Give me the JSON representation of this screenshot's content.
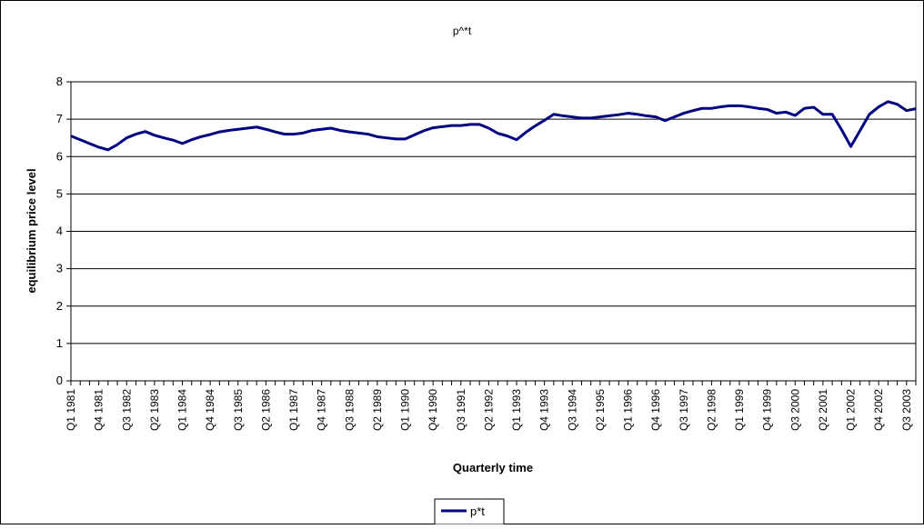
{
  "chart_data": {
    "type": "line",
    "title": "p^*t",
    "xlabel": "Quarterly time",
    "ylabel": "equilibrium price level",
    "ylim": [
      0,
      8
    ],
    "yticks": [
      0,
      1,
      2,
      3,
      4,
      5,
      6,
      7,
      8
    ],
    "grid": "horizontal",
    "legend": {
      "position": "bottom-center",
      "entries": [
        "p*t"
      ]
    },
    "x_tick_labels": [
      "Q1 1981",
      "Q4 1981",
      "Q3 1982",
      "Q2 1983",
      "Q1 1984",
      "Q4 1984",
      "Q3 1985",
      "Q2 1986",
      "Q1 1987",
      "Q4 1987",
      "Q3 1988",
      "Q2 1989",
      "Q1 1990",
      "Q4 1990",
      "Q3 1991",
      "Q2 1992",
      "Q1 1993",
      "Q4 1993",
      "Q3 1994",
      "Q2 1995",
      "Q1 1996",
      "Q4 1996",
      "Q3 1997",
      "Q2 1998",
      "Q1 1999",
      "Q4 1999",
      "Q3 2000",
      "Q2 2001",
      "Q1 2002",
      "Q4 2002",
      "Q3 2003"
    ],
    "x_tick_label_every": 3,
    "x": [
      "Q1 1981",
      "Q2 1981",
      "Q3 1981",
      "Q4 1981",
      "Q1 1982",
      "Q2 1982",
      "Q3 1982",
      "Q4 1982",
      "Q1 1983",
      "Q2 1983",
      "Q3 1983",
      "Q4 1983",
      "Q1 1984",
      "Q2 1984",
      "Q3 1984",
      "Q4 1984",
      "Q1 1985",
      "Q2 1985",
      "Q3 1985",
      "Q4 1985",
      "Q1 1986",
      "Q2 1986",
      "Q3 1986",
      "Q4 1986",
      "Q1 1987",
      "Q2 1987",
      "Q3 1987",
      "Q4 1987",
      "Q1 1988",
      "Q2 1988",
      "Q3 1988",
      "Q4 1988",
      "Q1 1989",
      "Q2 1989",
      "Q3 1989",
      "Q4 1989",
      "Q1 1990",
      "Q2 1990",
      "Q3 1990",
      "Q4 1990",
      "Q1 1991",
      "Q2 1991",
      "Q3 1991",
      "Q4 1991",
      "Q1 1992",
      "Q2 1992",
      "Q3 1992",
      "Q4 1992",
      "Q1 1993",
      "Q2 1993",
      "Q3 1993",
      "Q4 1993",
      "Q1 1994",
      "Q2 1994",
      "Q3 1994",
      "Q4 1994",
      "Q1 1995",
      "Q2 1995",
      "Q3 1995",
      "Q4 1995",
      "Q1 1996",
      "Q2 1996",
      "Q3 1996",
      "Q4 1996",
      "Q1 1997",
      "Q2 1997",
      "Q3 1997",
      "Q4 1997",
      "Q1 1998",
      "Q2 1998",
      "Q3 1998",
      "Q4 1998",
      "Q1 1999",
      "Q2 1999",
      "Q3 1999",
      "Q4 1999",
      "Q1 2000",
      "Q2 2000",
      "Q3 2000",
      "Q4 2000",
      "Q1 2001",
      "Q2 2001",
      "Q3 2001",
      "Q4 2001",
      "Q1 2002",
      "Q2 2002",
      "Q3 2002",
      "Q4 2002",
      "Q1 2003",
      "Q2 2003",
      "Q3 2003",
      "Q4 2003"
    ],
    "series": [
      {
        "name": "p*t",
        "color": "#000080",
        "values": [
          6.55,
          6.45,
          6.35,
          6.25,
          6.18,
          6.32,
          6.5,
          6.6,
          6.67,
          6.57,
          6.5,
          6.44,
          6.35,
          6.45,
          6.53,
          6.59,
          6.66,
          6.7,
          6.73,
          6.76,
          6.79,
          6.73,
          6.66,
          6.6,
          6.6,
          6.63,
          6.7,
          6.73,
          6.76,
          6.7,
          6.66,
          6.63,
          6.6,
          6.53,
          6.5,
          6.47,
          6.47,
          6.58,
          6.69,
          6.77,
          6.8,
          6.83,
          6.83,
          6.86,
          6.86,
          6.76,
          6.62,
          6.55,
          6.45,
          6.65,
          6.82,
          6.97,
          7.13,
          7.09,
          7.06,
          7.03,
          7.03,
          7.06,
          7.09,
          7.12,
          7.16,
          7.13,
          7.09,
          7.06,
          6.96,
          7.06,
          7.16,
          7.23,
          7.29,
          7.29,
          7.33,
          7.36,
          7.36,
          7.33,
          7.29,
          7.26,
          7.16,
          7.19,
          7.1,
          7.29,
          7.32,
          7.13,
          7.13,
          6.72,
          6.27,
          6.7,
          7.13,
          7.33,
          7.47,
          7.4,
          7.23,
          7.28
        ]
      }
    ]
  }
}
